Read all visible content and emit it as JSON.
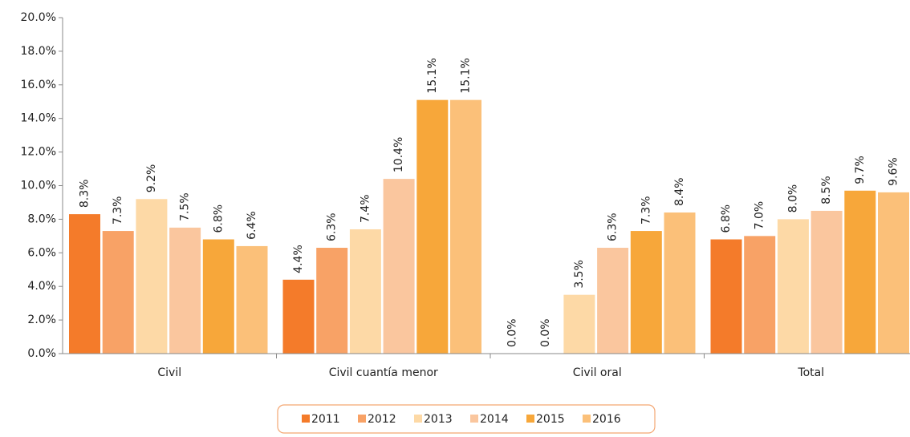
{
  "chart_data": {
    "type": "bar",
    "categories": [
      "Civil",
      "Civil cuantía menor",
      "Civil oral",
      "Total"
    ],
    "series": [
      {
        "name": "2011",
        "color": "#f47b2a",
        "values": [
          8.3,
          4.4,
          0.0,
          6.8
        ],
        "value_labels": [
          "8.3%",
          "4.4%",
          "0.0%",
          "6.8%"
        ]
      },
      {
        "name": "2012",
        "color": "#f8a266",
        "values": [
          7.3,
          6.3,
          0.0,
          7.0
        ],
        "value_labels": [
          "7.3%",
          "6.3%",
          "0.0%",
          "7.0%"
        ]
      },
      {
        "name": "2013",
        "color": "#fdd9a6",
        "values": [
          9.2,
          7.4,
          3.5,
          8.0
        ],
        "value_labels": [
          "9.2%",
          "7.4%",
          "3.5%",
          "8.0%"
        ]
      },
      {
        "name": "2014",
        "color": "#fac69e",
        "values": [
          7.5,
          10.4,
          6.3,
          8.5
        ],
        "value_labels": [
          "7.5%",
          "10.4%",
          "6.3%",
          "8.5%"
        ]
      },
      {
        "name": "2015",
        "color": "#f7a73a",
        "values": [
          6.8,
          15.1,
          7.3,
          9.7
        ],
        "value_labels": [
          "6.8%",
          "15.1%",
          "7.3%",
          "9.7%"
        ]
      },
      {
        "name": "2016",
        "color": "#fbc079",
        "values": [
          6.4,
          15.1,
          8.4,
          9.6
        ],
        "value_labels": [
          "6.4%",
          "15.1%",
          "8.4%",
          "9.6%"
        ]
      }
    ],
    "ylim": [
      0,
      20
    ],
    "yticks": [
      {
        "value": 0,
        "label": "0.0%"
      },
      {
        "value": 2,
        "label": "2.0%"
      },
      {
        "value": 4,
        "label": "4.0%"
      },
      {
        "value": 6,
        "label": "6.0%"
      },
      {
        "value": 8,
        "label": "8.0%"
      },
      {
        "value": 10,
        "label": "10.0%"
      },
      {
        "value": 12,
        "label": "12.0%"
      },
      {
        "value": 14,
        "label": "14.0%"
      },
      {
        "value": 16,
        "label": "16.0%"
      },
      {
        "value": 18,
        "label": "18.0%"
      },
      {
        "value": 20,
        "label": "20.0%"
      }
    ],
    "legend": "bottom"
  }
}
